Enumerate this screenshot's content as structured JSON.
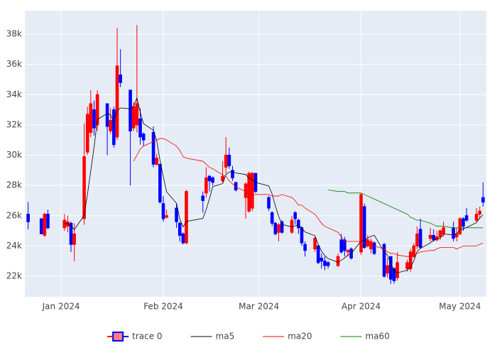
{
  "chart_data": {
    "type": "candlestick",
    "x": [
      "2023-12-22",
      "2023-12-26",
      "2023-12-27",
      "2023-12-28",
      "2024-01-02",
      "2024-01-03",
      "2024-01-04",
      "2024-01-05",
      "2024-01-08",
      "2024-01-09",
      "2024-01-10",
      "2024-01-11",
      "2024-01-12",
      "2024-01-15",
      "2024-01-16",
      "2024-01-17",
      "2024-01-18",
      "2024-01-19",
      "2024-01-22",
      "2024-01-23",
      "2024-01-24",
      "2024-01-25",
      "2024-01-26",
      "2024-01-29",
      "2024-01-30",
      "2024-01-31",
      "2024-02-01",
      "2024-02-02",
      "2024-02-05",
      "2024-02-06",
      "2024-02-07",
      "2024-02-08",
      "2024-02-13",
      "2024-02-14",
      "2024-02-15",
      "2024-02-16",
      "2024-02-19",
      "2024-02-20",
      "2024-02-21",
      "2024-02-22",
      "2024-02-23",
      "2024-02-26",
      "2024-02-27",
      "2024-02-28",
      "2024-02-29",
      "2024-03-04",
      "2024-03-05",
      "2024-03-06",
      "2024-03-07",
      "2024-03-08",
      "2024-03-11",
      "2024-03-12",
      "2024-03-13",
      "2024-03-14",
      "2024-03-15",
      "2024-03-18",
      "2024-03-19",
      "2024-03-20",
      "2024-03-21",
      "2024-03-22",
      "2024-03-25",
      "2024-03-26",
      "2024-03-27",
      "2024-03-28",
      "2024-03-29",
      "2024-04-01",
      "2024-04-02",
      "2024-04-03",
      "2024-04-04",
      "2024-04-05",
      "2024-04-08",
      "2024-04-09",
      "2024-04-10",
      "2024-04-11",
      "2024-04-12",
      "2024-04-15",
      "2024-04-16",
      "2024-04-17",
      "2024-04-18",
      "2024-04-19",
      "2024-04-22",
      "2024-04-23",
      "2024-04-24",
      "2024-04-25",
      "2024-04-26",
      "2024-04-29",
      "2024-04-30",
      "2024-05-01",
      "2024-05-02",
      "2024-05-03",
      "2024-05-06",
      "2024-05-07",
      "2024-05-08"
    ],
    "series": [
      {
        "name": "trace 0",
        "type": "candlestick",
        "increasing_color": "#ff0000",
        "decreasing_color": "#0000ff",
        "open": [
          26100,
          25800,
          24700,
          26100,
          25200,
          25300,
          25500,
          24100,
          25800,
          30200,
          31500,
          33000,
          32000,
          33400,
          31600,
          33000,
          31200,
          35300,
          34300,
          31800,
          32000,
          32400,
          31400,
          31500,
          29400,
          29400,
          26800,
          25900,
          26500,
          25500,
          24800,
          24200,
          27300,
          27500,
          28600,
          28500,
          28300,
          29200,
          30000,
          29000,
          28200,
          27200,
          26300,
          26500,
          28800,
          27200,
          26200,
          25500,
          24900,
          25600,
          24900,
          26200,
          25700,
          25200,
          24100,
          23800,
          24000,
          23200,
          23000,
          22900,
          22700,
          24400,
          24400,
          23600,
          23800,
          23600,
          26600,
          24000,
          23800,
          24200,
          24100,
          22200,
          23300,
          22500,
          21900,
          22500,
          22500,
          23300,
          24000,
          25100,
          24500,
          24700,
          24400,
          24600,
          24800,
          25200,
          24600,
          24800,
          25800,
          26000,
          25700,
          26100,
          27200
        ],
        "high": [
          26900,
          25800,
          26200,
          26400,
          26100,
          26000,
          25600,
          25500,
          32100,
          33200,
          34300,
          33600,
          34300,
          33400,
          33100,
          33200,
          38400,
          37000,
          34300,
          33500,
          38600,
          33100,
          31500,
          31900,
          30100,
          29400,
          27300,
          26400,
          26800,
          25600,
          24900,
          27700,
          27600,
          29200,
          28700,
          28600,
          29600,
          31200,
          30500,
          29300,
          28200,
          28200,
          28900,
          28900,
          28800,
          27300,
          26300,
          25600,
          25500,
          25700,
          26000,
          26300,
          25800,
          25300,
          24300,
          24600,
          24100,
          23500,
          23300,
          23000,
          23500,
          24800,
          24600,
          23800,
          23900,
          27500,
          26800,
          24700,
          24500,
          24300,
          24200,
          23200,
          23300,
          22600,
          23600,
          23100,
          23800,
          24200,
          25300,
          25800,
          25200,
          25100,
          25000,
          25100,
          25600,
          25600,
          25200,
          25900,
          25900,
          26500,
          26500,
          26600,
          28200
        ],
        "low": [
          25100,
          24800,
          24600,
          25100,
          25000,
          24900,
          23600,
          23000,
          25400,
          30000,
          31200,
          31300,
          31600,
          30000,
          31400,
          30500,
          31000,
          34500,
          28000,
          31600,
          31500,
          30700,
          30600,
          29200,
          29300,
          26800,
          25600,
          25800,
          25200,
          24300,
          24100,
          24100,
          26200,
          27200,
          27600,
          28000,
          28200,
          28800,
          29100,
          28300,
          27600,
          25800,
          26200,
          26300,
          27500,
          26300,
          25300,
          24700,
          24300,
          24800,
          24800,
          25400,
          24800,
          24000,
          23300,
          23600,
          22800,
          22500,
          22400,
          22500,
          22600,
          23500,
          23300,
          23300,
          23100,
          23400,
          23800,
          23900,
          23500,
          23400,
          21900,
          21900,
          21500,
          21500,
          21700,
          22300,
          22300,
          23200,
          23800,
          23800,
          24300,
          24300,
          24300,
          24400,
          24600,
          24300,
          24300,
          24700,
          25000,
          25600,
          25600,
          25800,
          26600
        ],
        "close": [
          25600,
          24800,
          26100,
          25200,
          25700,
          25600,
          24100,
          24800,
          29900,
          32700,
          33400,
          31800,
          34000,
          31900,
          32300,
          30700,
          35900,
          34800,
          31600,
          33200,
          33400,
          31200,
          31000,
          29400,
          29800,
          26900,
          25800,
          26000,
          25600,
          24700,
          24200,
          27600,
          27000,
          28500,
          28300,
          28200,
          28600,
          30000,
          29300,
          28500,
          27700,
          28100,
          28800,
          28800,
          27600,
          26500,
          25500,
          24800,
          25400,
          24900,
          25700,
          25800,
          25200,
          24200,
          23700,
          24500,
          22900,
          23000,
          22700,
          22700,
          23300,
          23600,
          23700,
          23700,
          23200,
          27400,
          23900,
          24400,
          24300,
          23500,
          22000,
          22700,
          21800,
          21700,
          22900,
          22900,
          23600,
          24000,
          24800,
          23900,
          24700,
          24400,
          24600,
          25000,
          25200,
          24500,
          24800,
          25800,
          25300,
          25700,
          26100,
          26300,
          26900
        ]
      },
      {
        "name": "ma5",
        "type": "line",
        "color": "#000000",
        "values": [
          null,
          null,
          null,
          null,
          25480,
          25480,
          25340,
          25080,
          26020,
          27420,
          28980,
          30520,
          32360,
          32760,
          32680,
          32140,
          32960,
          33120,
          33060,
          33240,
          33780,
          32840,
          32080,
          31640,
          30960,
          29660,
          28580,
          27580,
          26820,
          25800,
          25260,
          25620,
          25820,
          26400,
          27120,
          27920,
          28120,
          28720,
          28880,
          28920,
          28820,
          28720,
          28480,
          28380,
          28200,
          27960,
          27440,
          26640,
          25960,
          25420,
          25260,
          25320,
          25400,
          25160,
          24920,
          24680,
          24100,
          23660,
          23360,
          23160,
          22920,
          23060,
          23200,
          23400,
          23500,
          24320,
          24380,
          24520,
          24640,
          24700,
          23620,
          23380,
          22860,
          22340,
          22220,
          22400,
          22580,
          23020,
          23640,
          23840,
          24200,
          24360,
          24480,
          24520,
          24780,
          24740,
          24820,
          25060,
          25120,
          25220,
          25540,
          25840,
          26060
        ]
      },
      {
        "name": "ma20",
        "type": "line",
        "color": "#ff0000",
        "values": [
          null,
          null,
          null,
          null,
          null,
          null,
          null,
          null,
          null,
          null,
          null,
          null,
          null,
          null,
          null,
          null,
          null,
          null,
          null,
          29600,
          30000,
          30400,
          30600,
          30900,
          31000,
          31100,
          31100,
          31000,
          30600,
          30300,
          29900,
          29800,
          29600,
          29400,
          29200,
          29100,
          28700,
          28600,
          28300,
          28100,
          27900,
          27600,
          27500,
          27400,
          27400,
          27400,
          27300,
          27300,
          27300,
          27400,
          27200,
          27000,
          26700,
          26700,
          26500,
          26100,
          25800,
          25500,
          25300,
          25200,
          24900,
          24600,
          24300,
          24300,
          24300,
          24300,
          24200,
          24100,
          24100,
          24000,
          23800,
          23600,
          23500,
          23500,
          23400,
          23300,
          23300,
          23400,
          23500,
          23600,
          23700,
          23700,
          23800,
          23900,
          23900,
          23900,
          23800,
          23900,
          24000,
          24000,
          24000,
          24100,
          24200
        ]
      },
      {
        "name": "ma60",
        "type": "line",
        "color": "#008000",
        "values": [
          null,
          null,
          null,
          null,
          null,
          null,
          null,
          null,
          null,
          null,
          null,
          null,
          null,
          null,
          null,
          null,
          null,
          null,
          null,
          null,
          null,
          null,
          null,
          null,
          null,
          null,
          null,
          null,
          null,
          null,
          null,
          null,
          null,
          null,
          null,
          null,
          null,
          null,
          null,
          null,
          null,
          null,
          null,
          null,
          null,
          null,
          null,
          null,
          null,
          null,
          null,
          null,
          null,
          null,
          null,
          null,
          null,
          null,
          null,
          27700,
          27600,
          27600,
          27600,
          27500,
          27500,
          27500,
          27400,
          27300,
          27200,
          27100,
          26800,
          26700,
          26600,
          26500,
          26400,
          26100,
          25900,
          25800,
          25700,
          25700,
          25500,
          25400,
          25300,
          25300,
          25300,
          25200,
          25200,
          25200,
          25200,
          25200,
          25200,
          25200,
          25200
        ]
      }
    ],
    "xlim": [
      "2023-12-21",
      "2024-05-09"
    ],
    "xticks": [
      {
        "value": "2024-01-01",
        "label": "Jan 2024"
      },
      {
        "value": "2024-02-01",
        "label": "Feb 2024"
      },
      {
        "value": "2024-03-01",
        "label": "Mar 2024"
      },
      {
        "value": "2024-04-01",
        "label": "Apr 2024"
      },
      {
        "value": "2024-05-01",
        "label": "May 2024"
      }
    ],
    "ylim": [
      20640,
      39550
    ],
    "yticks": [
      {
        "value": 22000,
        "label": "22k"
      },
      {
        "value": 24000,
        "label": "24k"
      },
      {
        "value": 26000,
        "label": "26k"
      },
      {
        "value": 28000,
        "label": "28k"
      },
      {
        "value": 30000,
        "label": "30k"
      },
      {
        "value": 32000,
        "label": "32k"
      },
      {
        "value": 34000,
        "label": "34k"
      },
      {
        "value": 36000,
        "label": "36k"
      },
      {
        "value": 38000,
        "label": "38k"
      }
    ],
    "grid": true,
    "legend": "bottom"
  }
}
